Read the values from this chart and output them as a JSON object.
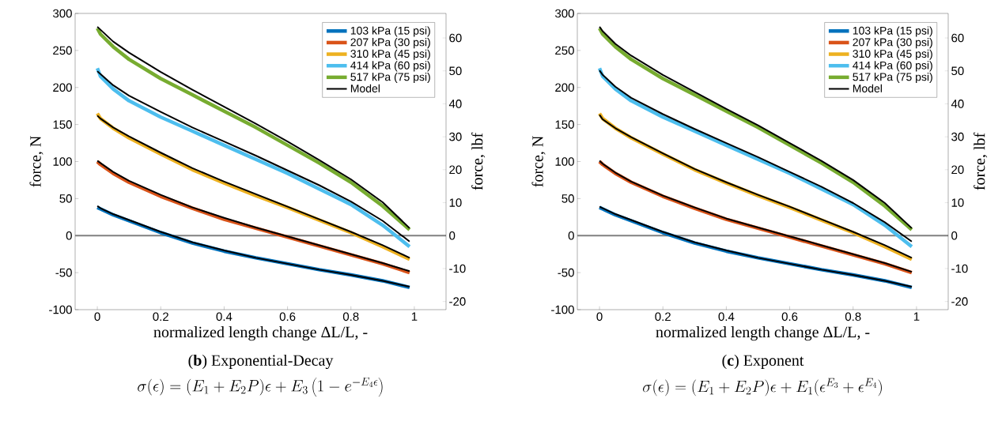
{
  "chart_data": [
    {
      "type": "line",
      "xlabel": "normalized length change ΔL/L, -",
      "ylabel": "force, N",
      "y2label": "force, lbf",
      "xlim": [
        -0.07,
        1.1
      ],
      "xticks": [
        0,
        0.2,
        0.4,
        0.6,
        0.8,
        1
      ],
      "ylim": [
        -100,
        300
      ],
      "yticks": [
        -100,
        -50,
        0,
        50,
        100,
        150,
        200,
        250,
        300
      ],
      "y2lim": [
        -22.48,
        67.44
      ],
      "y2ticks": [
        -20,
        -10,
        0,
        10,
        20,
        30,
        40,
        50,
        60
      ],
      "legend": "top right",
      "ref_lines": [
        {
          "axis": "y",
          "value": 0,
          "color": "#808080"
        }
      ],
      "annotations": [
        "(**b**) Exponential-Decay",
        "\\sigma(\\epsilon) = (E_1 + E_2 P)\\epsilon + E_3\\left(1 - e^{-E_4\\epsilon}\\right)"
      ],
      "series": [
        {
          "name": "103 kPa (15 psi)",
          "color": "#0072bd",
          "x": [
            0,
            0.01,
            0.05,
            0.1,
            0.2,
            0.3,
            0.4,
            0.5,
            0.6,
            0.7,
            0.8,
            0.9,
            0.985
          ],
          "values": [
            38,
            36,
            28,
            20,
            4,
            -10,
            -21,
            -30,
            -38,
            -46,
            -53,
            -61,
            -70
          ]
        },
        {
          "name": "207 kPa (30 psi)",
          "color": "#d95319",
          "x": [
            0,
            0.01,
            0.05,
            0.1,
            0.2,
            0.3,
            0.4,
            0.5,
            0.6,
            0.7,
            0.8,
            0.9,
            0.985
          ],
          "values": [
            100,
            96,
            84,
            72,
            53,
            37,
            22,
            10,
            -2,
            -14,
            -26,
            -38,
            -50
          ]
        },
        {
          "name": "310 kPa (45 psi)",
          "color": "#edb120",
          "x": [
            0,
            0.01,
            0.05,
            0.1,
            0.2,
            0.3,
            0.4,
            0.5,
            0.6,
            0.7,
            0.8,
            0.9,
            0.985
          ],
          "values": [
            165,
            158,
            145,
            132,
            110,
            89,
            71,
            54,
            38,
            21,
            4,
            -15,
            -32
          ]
        },
        {
          "name": "414 kPa (60 psi)",
          "color": "#4dbeee",
          "x": [
            0,
            0.01,
            0.05,
            0.1,
            0.2,
            0.3,
            0.4,
            0.5,
            0.6,
            0.7,
            0.8,
            0.9,
            0.985
          ],
          "values": [
            226,
            215,
            198,
            182,
            160,
            141,
            122,
            103,
            84,
            63,
            42,
            14,
            -15
          ]
        },
        {
          "name": "517 kPa (75 psi)",
          "color": "#77ac30",
          "x": [
            0,
            0.01,
            0.05,
            0.1,
            0.2,
            0.3,
            0.4,
            0.5,
            0.6,
            0.7,
            0.8,
            0.9,
            0.985
          ],
          "values": [
            280,
            272,
            255,
            238,
            212,
            190,
            168,
            146,
            122,
            98,
            72,
            40,
            8
          ]
        },
        {
          "name": "Model",
          "color": "#000000",
          "x": [
            0,
            0.01,
            0.05,
            0.1,
            0.2,
            0.3,
            0.4,
            0.5,
            0.6,
            0.7,
            0.8,
            0.9,
            0.985
          ],
          "values": [
            40,
            37,
            29,
            21,
            5,
            -9,
            -20,
            -30,
            -38,
            -46,
            -53,
            -61,
            -69
          ]
        },
        {
          "color": "#000000",
          "x": [
            0,
            0.01,
            0.05,
            0.1,
            0.2,
            0.3,
            0.4,
            0.5,
            0.6,
            0.7,
            0.8,
            0.9,
            0.985
          ],
          "values": [
            101,
            98,
            86,
            74,
            55,
            38,
            24,
            11,
            -1,
            -13,
            -25,
            -37,
            -48
          ]
        },
        {
          "color": "#000000",
          "x": [
            0,
            0.01,
            0.05,
            0.1,
            0.2,
            0.3,
            0.4,
            0.5,
            0.6,
            0.7,
            0.8,
            0.9,
            0.985
          ],
          "values": [
            162,
            158,
            146,
            134,
            112,
            91,
            73,
            56,
            39,
            22,
            5,
            -13,
            -30
          ]
        },
        {
          "color": "#000000",
          "x": [
            0,
            0.01,
            0.05,
            0.1,
            0.2,
            0.3,
            0.4,
            0.5,
            0.6,
            0.7,
            0.8,
            0.9,
            0.985
          ],
          "values": [
            222,
            218,
            203,
            189,
            167,
            146,
            127,
            108,
            88,
            68,
            46,
            20,
            -8
          ]
        },
        {
          "color": "#000000",
          "x": [
            0,
            0.01,
            0.05,
            0.1,
            0.2,
            0.3,
            0.4,
            0.5,
            0.6,
            0.7,
            0.8,
            0.9,
            0.985
          ],
          "values": [
            282,
            278,
            262,
            247,
            221,
            197,
            174,
            151,
            127,
            102,
            76,
            45,
            10
          ]
        }
      ]
    },
    {
      "type": "line",
      "xlabel": "normalized length change ΔL/L, -",
      "ylabel": "force, N",
      "y2label": "force, lbf",
      "xlim": [
        -0.07,
        1.1
      ],
      "xticks": [
        0,
        0.2,
        0.4,
        0.6,
        0.8,
        1
      ],
      "ylim": [
        -100,
        300
      ],
      "yticks": [
        -100,
        -50,
        0,
        50,
        100,
        150,
        200,
        250,
        300
      ],
      "y2lim": [
        -22.48,
        67.44
      ],
      "y2ticks": [
        -20,
        -10,
        0,
        10,
        20,
        30,
        40,
        50,
        60
      ],
      "legend": "top right",
      "ref_lines": [
        {
          "axis": "y",
          "value": 0,
          "color": "#808080"
        }
      ],
      "annotations": [
        "(**c**) Exponent",
        "\\sigma(\\epsilon) = (E_1 + E_2 P)\\epsilon + E_1(\\epsilon^{E_3} + \\epsilon^{E_4})"
      ],
      "series": [
        {
          "name": "103 kPa (15 psi)",
          "color": "#0072bd",
          "x": [
            0,
            0.01,
            0.05,
            0.1,
            0.2,
            0.3,
            0.4,
            0.5,
            0.6,
            0.7,
            0.8,
            0.9,
            0.985
          ],
          "values": [
            38,
            36,
            28,
            20,
            4,
            -10,
            -21,
            -30,
            -38,
            -46,
            -53,
            -61,
            -70
          ]
        },
        {
          "name": "207 kPa (30 psi)",
          "color": "#d95319",
          "x": [
            0,
            0.01,
            0.05,
            0.1,
            0.2,
            0.3,
            0.4,
            0.5,
            0.6,
            0.7,
            0.8,
            0.9,
            0.985
          ],
          "values": [
            100,
            96,
            84,
            72,
            53,
            37,
            22,
            10,
            -2,
            -14,
            -26,
            -38,
            -50
          ]
        },
        {
          "name": "310 kPa (45 psi)",
          "color": "#edb120",
          "x": [
            0,
            0.01,
            0.05,
            0.1,
            0.2,
            0.3,
            0.4,
            0.5,
            0.6,
            0.7,
            0.8,
            0.9,
            0.985
          ],
          "values": [
            165,
            158,
            145,
            132,
            110,
            89,
            71,
            54,
            38,
            21,
            4,
            -15,
            -32
          ]
        },
        {
          "name": "414 kPa (60 psi)",
          "color": "#4dbeee",
          "x": [
            0,
            0.01,
            0.05,
            0.1,
            0.2,
            0.3,
            0.4,
            0.5,
            0.6,
            0.7,
            0.8,
            0.9,
            0.985
          ],
          "values": [
            226,
            215,
            198,
            182,
            160,
            141,
            122,
            103,
            84,
            63,
            42,
            14,
            -15
          ]
        },
        {
          "name": "517 kPa (75 psi)",
          "color": "#77ac30",
          "x": [
            0,
            0.01,
            0.05,
            0.1,
            0.2,
            0.3,
            0.4,
            0.5,
            0.6,
            0.7,
            0.8,
            0.9,
            0.985
          ],
          "values": [
            280,
            272,
            255,
            238,
            212,
            190,
            168,
            146,
            122,
            98,
            72,
            40,
            8
          ]
        },
        {
          "name": "Model",
          "color": "#000000",
          "x": [
            0,
            0.01,
            0.05,
            0.1,
            0.2,
            0.3,
            0.4,
            0.5,
            0.6,
            0.7,
            0.8,
            0.9,
            0.985
          ],
          "values": [
            39,
            37,
            29,
            21,
            5,
            -9,
            -20,
            -30,
            -38,
            -46,
            -53,
            -61,
            -69
          ]
        },
        {
          "color": "#000000",
          "x": [
            0,
            0.01,
            0.05,
            0.1,
            0.2,
            0.3,
            0.4,
            0.5,
            0.6,
            0.7,
            0.8,
            0.9,
            0.985
          ],
          "values": [
            101,
            97,
            85,
            73,
            54,
            38,
            23,
            11,
            -1,
            -13,
            -25,
            -37,
            -49
          ]
        },
        {
          "color": "#000000",
          "x": [
            0,
            0.01,
            0.05,
            0.1,
            0.2,
            0.3,
            0.4,
            0.5,
            0.6,
            0.7,
            0.8,
            0.9,
            0.985
          ],
          "values": [
            163,
            157,
            145,
            133,
            111,
            90,
            72,
            55,
            39,
            22,
            5,
            -13,
            -30
          ]
        },
        {
          "color": "#000000",
          "x": [
            0,
            0.01,
            0.05,
            0.1,
            0.2,
            0.3,
            0.4,
            0.5,
            0.6,
            0.7,
            0.8,
            0.9,
            0.985
          ],
          "values": [
            223,
            217,
            201,
            186,
            164,
            144,
            125,
            106,
            86,
            66,
            44,
            18,
            -8
          ]
        },
        {
          "color": "#000000",
          "x": [
            0,
            0.01,
            0.05,
            0.1,
            0.2,
            0.3,
            0.4,
            0.5,
            0.6,
            0.7,
            0.8,
            0.9,
            0.985
          ],
          "values": [
            282,
            276,
            259,
            243,
            217,
            194,
            171,
            149,
            125,
            101,
            75,
            44,
            10
          ]
        }
      ]
    }
  ]
}
